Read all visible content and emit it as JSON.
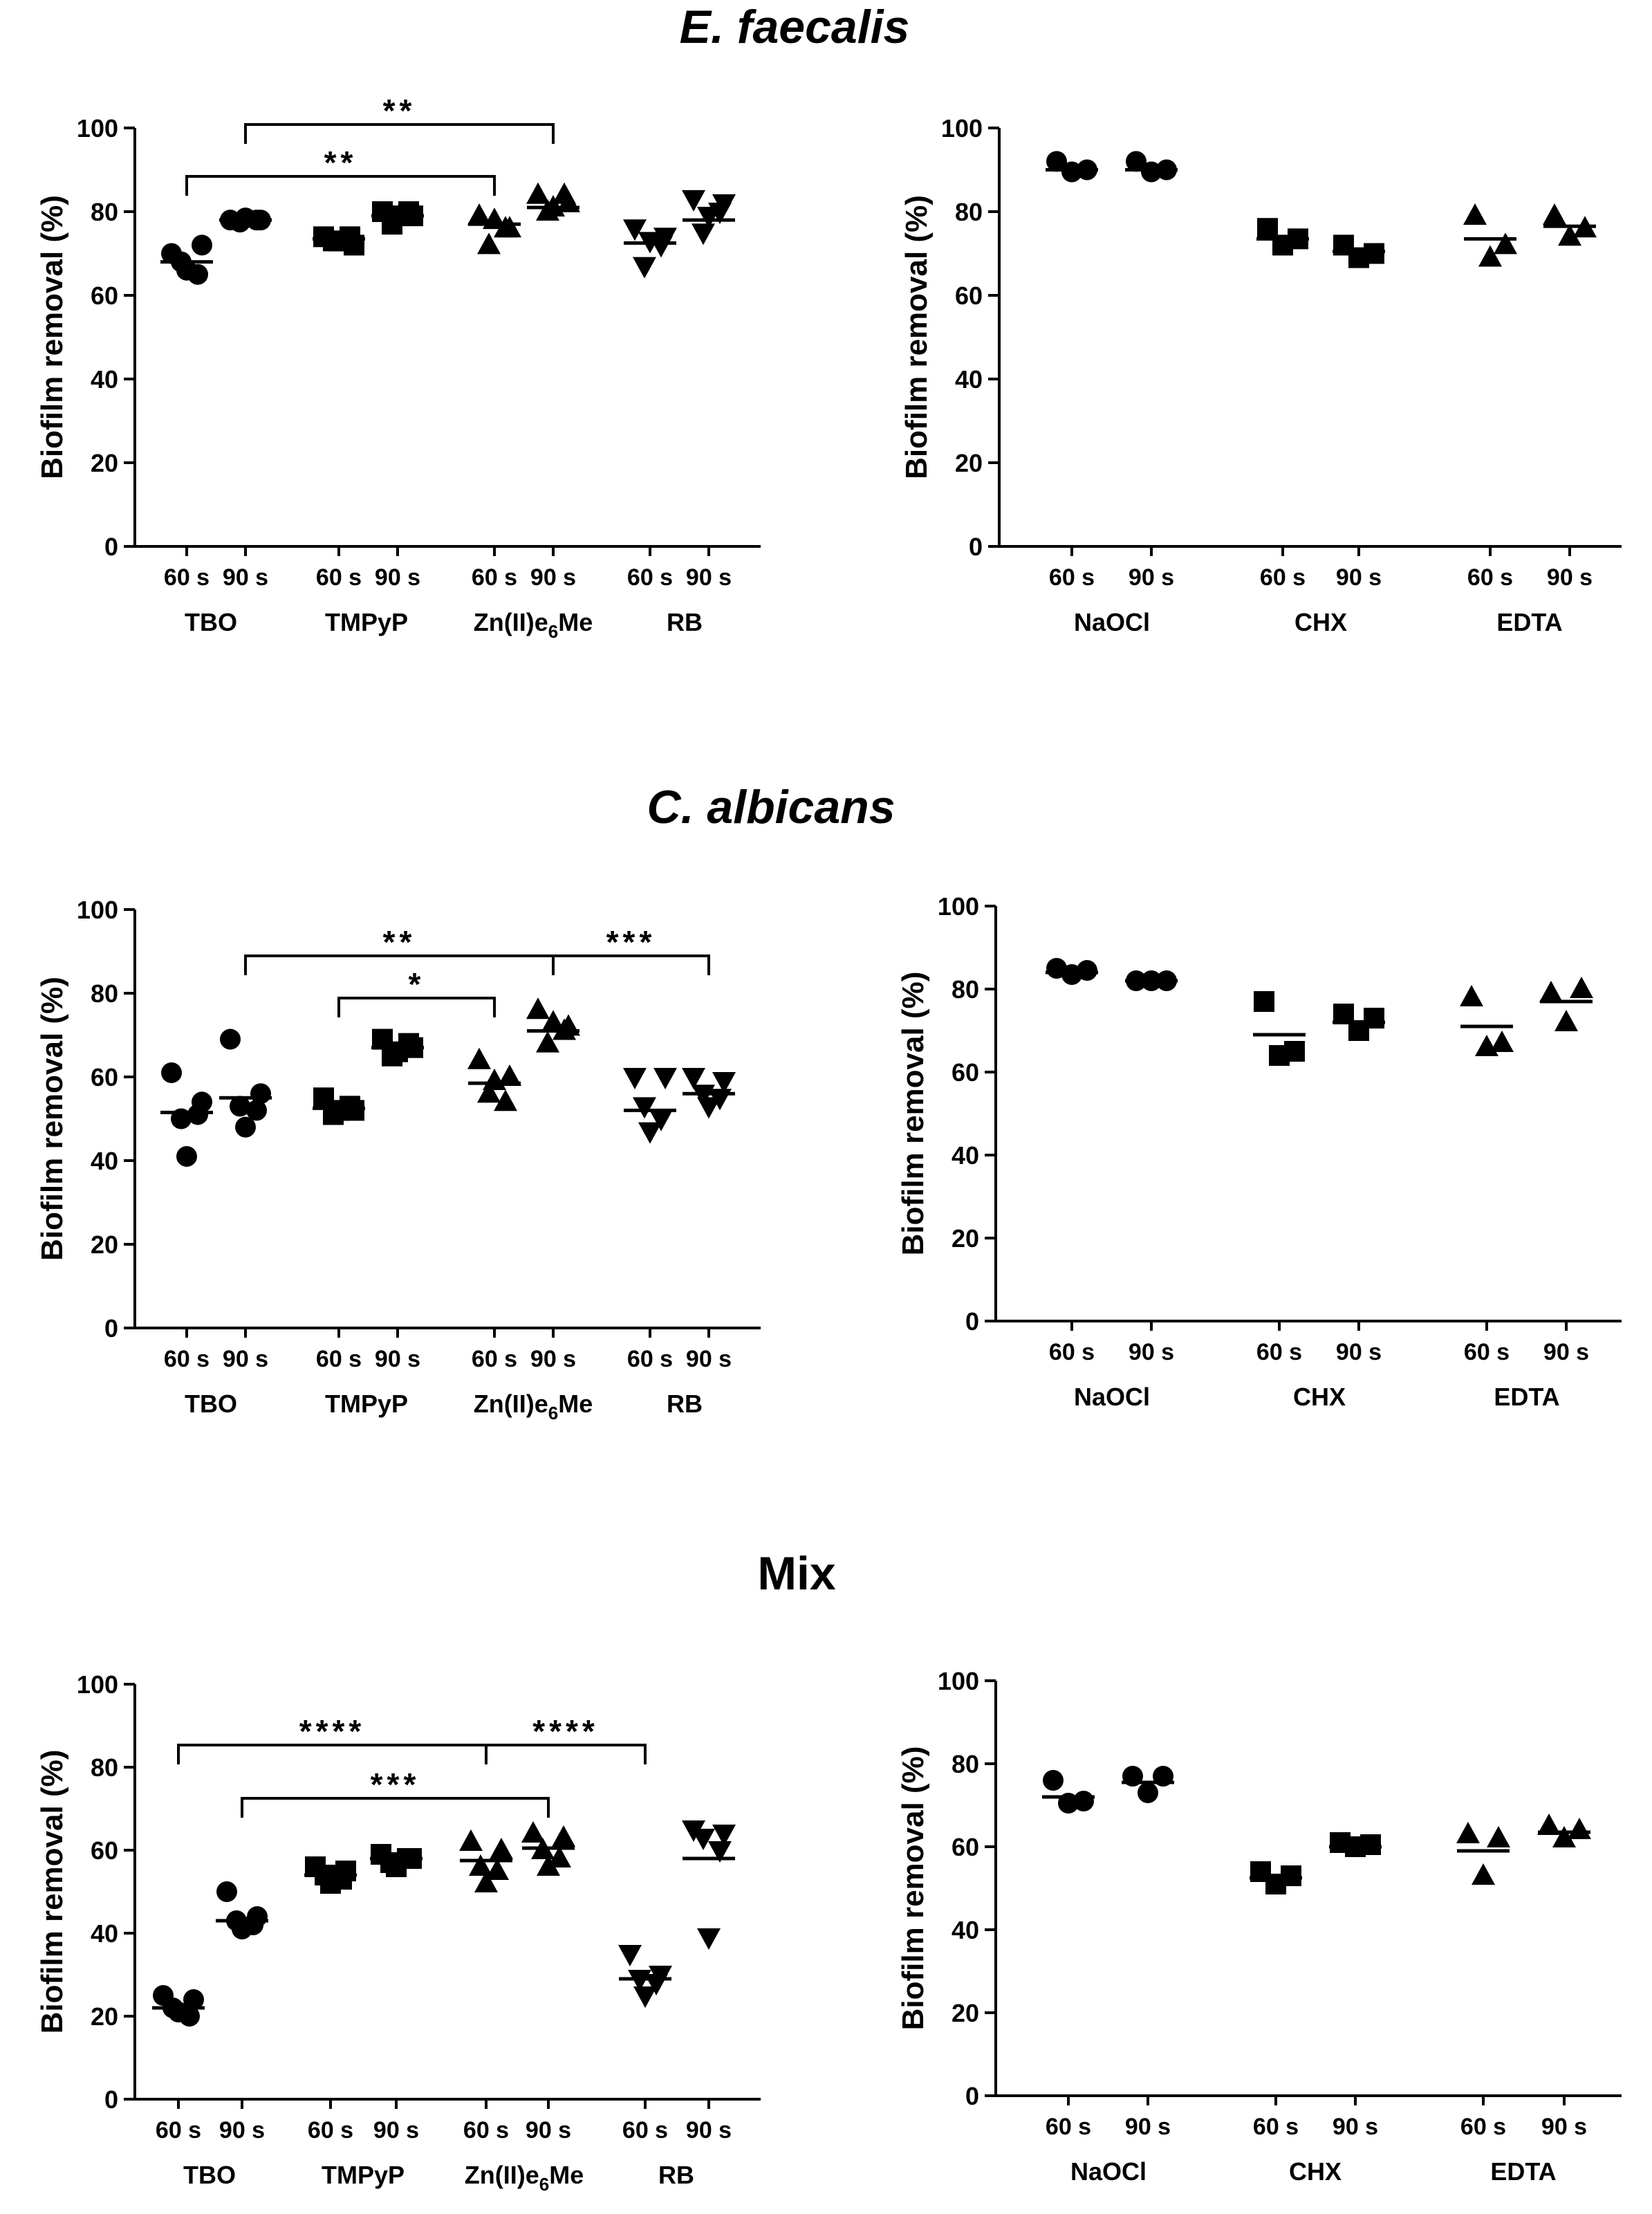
{
  "row_titles": [
    "E. faecalis",
    "C. albicans",
    "Mix"
  ],
  "chart_data": [
    {
      "id": "ef-pdt",
      "title": "E. faecalis",
      "type": "scatter",
      "ylabel": "Biofilm removal (%)",
      "ylim": [
        0,
        100
      ],
      "yticks": [
        0,
        20,
        40,
        60,
        80,
        100
      ],
      "x_tick_labels": [
        "60 s",
        "90 s",
        "60 s",
        "90 s",
        "60 s",
        "90 s",
        "60 s",
        "90 s"
      ],
      "groups": [
        {
          "label": "TBO",
          "marker": "circle",
          "points": [
            [
              70,
              72,
              68,
              65,
              66
            ],
            [
              78,
              78,
              77.5,
              78,
              78.5
            ]
          ],
          "means": [
            68,
            78
          ]
        },
        {
          "label": "TMPyP",
          "marker": "square",
          "points": [
            [
              74,
              72,
              73,
              74,
              73
            ],
            [
              80,
              79,
              77,
              80,
              79
            ]
          ],
          "means": [
            73.5,
            79
          ]
        },
        {
          "label": "Zn(II)e6Me",
          "marker": "triangle-up",
          "points": [
            [
              79,
              76,
              72,
              76,
              78
            ],
            [
              84,
              82,
              80,
              84,
              81
            ]
          ],
          "means": [
            77,
            81
          ]
        },
        {
          "label": "RB",
          "marker": "triangle-down",
          "points": [
            [
              76,
              74,
              67,
              72,
              73
            ],
            [
              83,
              82,
              75,
              80,
              79
            ]
          ],
          "means": [
            72.5,
            78
          ]
        }
      ],
      "significance": [
        {
          "text": "**",
          "from": "TBO 60 s",
          "to": "Zn(II)e6Me 60 s"
        },
        {
          "text": "**",
          "from": "TBO 90 s",
          "to": "Zn(II)e6Me 90 s"
        }
      ]
    },
    {
      "id": "ef-ctrl",
      "title": "E. faecalis",
      "type": "scatter",
      "ylabel": "Biofilm removal (%)",
      "ylim": [
        0,
        100
      ],
      "yticks": [
        0,
        20,
        40,
        60,
        80,
        100
      ],
      "x_tick_labels": [
        "60 s",
        "90 s",
        "60 s",
        "90 s",
        "60 s",
        "90 s"
      ],
      "groups": [
        {
          "label": "NaOCl",
          "marker": "circle",
          "points": [
            [
              92,
              89.5,
              90
            ],
            [
              92,
              89.5,
              90
            ]
          ],
          "means": [
            90,
            90
          ]
        },
        {
          "label": "CHX",
          "marker": "square",
          "points": [
            [
              76,
              72,
              73.5
            ],
            [
              72,
              69,
              70
            ]
          ],
          "means": [
            73.5,
            70.5
          ]
        },
        {
          "label": "EDTA",
          "marker": "triangle-up",
          "points": [
            [
              79,
              69,
              72
            ],
            [
              79,
              74,
              76
            ]
          ],
          "means": [
            73.5,
            76.5
          ]
        }
      ],
      "significance": []
    },
    {
      "id": "ca-pdt",
      "title": "C. albicans",
      "type": "scatter",
      "ylabel": "Biofilm removal (%)",
      "ylim": [
        0,
        100
      ],
      "yticks": [
        0,
        20,
        40,
        60,
        80,
        100
      ],
      "x_tick_labels": [
        "60 s",
        "90 s",
        "60 s",
        "90 s",
        "60 s",
        "90 s",
        "60 s",
        "90 s"
      ],
      "groups": [
        {
          "label": "TBO",
          "marker": "circle",
          "points": [
            [
              61,
              54,
              50,
              51,
              41
            ],
            [
              69,
              56,
              53,
              52,
              48
            ]
          ],
          "means": [
            51.5,
            55
          ]
        },
        {
          "label": "TMPyP",
          "marker": "square",
          "points": [
            [
              55,
              52,
              51,
              53,
              52
            ],
            [
              69,
              67,
              65,
              68,
              66
            ]
          ],
          "means": [
            52.5,
            67
          ]
        },
        {
          "label": "Zn(II)e6Me",
          "marker": "triangle-up",
          "points": [
            [
              64,
              60,
              56,
              54,
              59
            ],
            [
              76,
              72,
              68,
              71,
              73
            ]
          ],
          "means": [
            58.5,
            71
          ]
        },
        {
          "label": "RB",
          "marker": "triangle-down",
          "points": [
            [
              60,
              60,
              53,
              50,
              47
            ],
            [
              60,
              59,
              56,
              55,
              53
            ]
          ],
          "means": [
            52,
            56
          ]
        }
      ],
      "significance": [
        {
          "text": "**",
          "from": "TBO 90 s",
          "to": "Zn(II)e6Me 90 s"
        },
        {
          "text": "*",
          "from": "TMPyP 60 s",
          "to": "Zn(II)e6Me 60 s"
        },
        {
          "text": "***",
          "from": "Zn(II)e6Me 90 s",
          "to": "RB 90 s"
        }
      ]
    },
    {
      "id": "ca-ctrl",
      "title": "C. albicans",
      "type": "scatter",
      "ylabel": "Biofilm removal (%)",
      "ylim": [
        0,
        100
      ],
      "yticks": [
        0,
        20,
        40,
        60,
        80,
        100
      ],
      "x_tick_labels": [
        "60 s",
        "90 s",
        "60 s",
        "90 s",
        "60 s",
        "90 s"
      ],
      "groups": [
        {
          "label": "NaOCl",
          "marker": "circle",
          "points": [
            [
              85,
              83.5,
              84.5
            ],
            [
              82,
              82,
              82
            ]
          ],
          "means": [
            84,
            82
          ]
        },
        {
          "label": "CHX",
          "marker": "square",
          "points": [
            [
              77,
              64,
              65
            ],
            [
              74,
              70,
              73
            ]
          ],
          "means": [
            69,
            72
          ]
        },
        {
          "label": "EDTA",
          "marker": "triangle-up",
          "points": [
            [
              78,
              66,
              67
            ],
            [
              79,
              72,
              80
            ]
          ],
          "means": [
            71,
            77
          ]
        }
      ],
      "significance": []
    },
    {
      "id": "mix-pdt",
      "title": "Mix",
      "type": "scatter",
      "ylabel": "Biofilm removal (%)",
      "ylim": [
        0,
        100
      ],
      "yticks": [
        0,
        20,
        40,
        60,
        80,
        100
      ],
      "x_tick_labels": [
        "60 s",
        "90 s",
        "60 s",
        "90 s",
        "60 s",
        "90 s",
        "60 s",
        "90 s"
      ],
      "groups": [
        {
          "label": "TBO",
          "marker": "circle",
          "points": [
            [
              25,
              24,
              22,
              20,
              21
            ],
            [
              50,
              44,
              43,
              42,
              41
            ]
          ],
          "means": [
            22,
            43
          ]
        },
        {
          "label": "TMPyP",
          "marker": "square",
          "points": [
            [
              56,
              55,
              54,
              53,
              52
            ],
            [
              59,
              58,
              57,
              58,
              56
            ]
          ],
          "means": [
            54,
            58
          ]
        },
        {
          "label": "Zn(II)e6Me",
          "marker": "triangle-up",
          "points": [
            [
              62,
              60,
              56,
              55,
              52
            ],
            [
              64,
              63,
              60,
              58,
              56
            ]
          ],
          "means": [
            57.5,
            60.5
          ]
        },
        {
          "label": "RB",
          "marker": "triangle-down",
          "points": [
            [
              35,
              30,
              29,
              28,
              25
            ],
            [
              65,
              64,
              63,
              60,
              39
            ]
          ],
          "means": [
            29,
            58
          ]
        }
      ],
      "significance": [
        {
          "text": "****",
          "from": "TBO 60 s",
          "to": "Zn(II)e6Me 60 s"
        },
        {
          "text": "***",
          "from": "TBO 90 s",
          "to": "Zn(II)e6Me 90 s"
        },
        {
          "text": "****",
          "from": "Zn(II)e6Me 60 s",
          "to": "RB 60 s"
        }
      ]
    },
    {
      "id": "mix-ctrl",
      "title": "Mix",
      "type": "scatter",
      "ylabel": "Biofilm removal (%)",
      "ylim": [
        0,
        100
      ],
      "yticks": [
        0,
        20,
        40,
        60,
        80,
        100
      ],
      "x_tick_labels": [
        "60 s",
        "90 s",
        "60 s",
        "90 s",
        "60 s",
        "90 s"
      ],
      "groups": [
        {
          "label": "NaOCl",
          "marker": "circle",
          "points": [
            [
              76,
              70.5,
              71
            ],
            [
              77,
              73,
              77
            ]
          ],
          "means": [
            72,
            75.5
          ]
        },
        {
          "label": "CHX",
          "marker": "square",
          "points": [
            [
              54,
              51,
              53
            ],
            [
              61,
              60,
              60.5
            ]
          ],
          "means": [
            52.5,
            60
          ]
        },
        {
          "label": "EDTA",
          "marker": "triangle-up",
          "points": [
            [
              63,
              53,
              62
            ],
            [
              65,
              62,
              64
            ]
          ],
          "means": [
            59,
            63.5
          ]
        }
      ],
      "significance": []
    }
  ]
}
